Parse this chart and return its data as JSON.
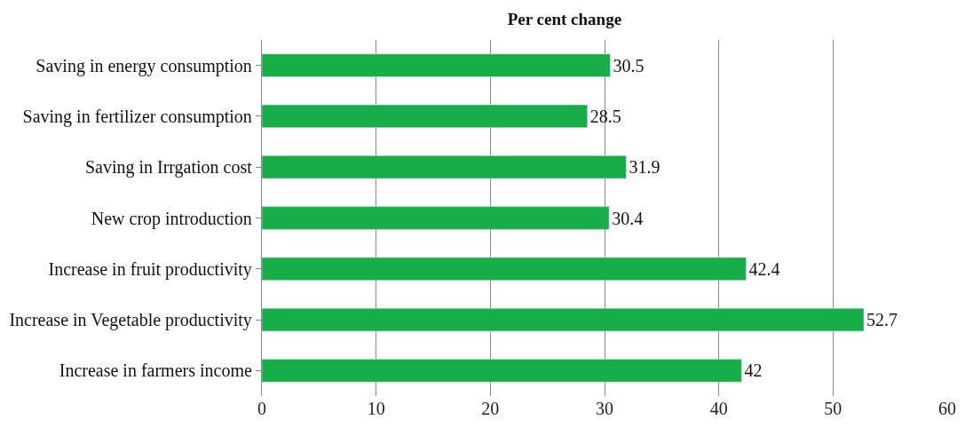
{
  "chart_data": {
    "type": "bar",
    "orientation": "horizontal",
    "title": "Per cent change",
    "categories": [
      "Saving in energy consumption",
      "Saving in fertilizer consumption",
      "Saving in Irrgation cost",
      "New crop introduction",
      "Increase in fruit productivity",
      "Increase in Vegetable productivity",
      "Increase in farmers income"
    ],
    "values": [
      30.5,
      28.5,
      31.9,
      30.4,
      42.4,
      52.7,
      42
    ],
    "color": "#17ae4a",
    "xlim": [
      0,
      60
    ],
    "xticks": [
      0,
      10,
      20,
      30,
      40,
      50,
      60
    ],
    "grid": "x",
    "data_labels": true,
    "legend": false
  }
}
